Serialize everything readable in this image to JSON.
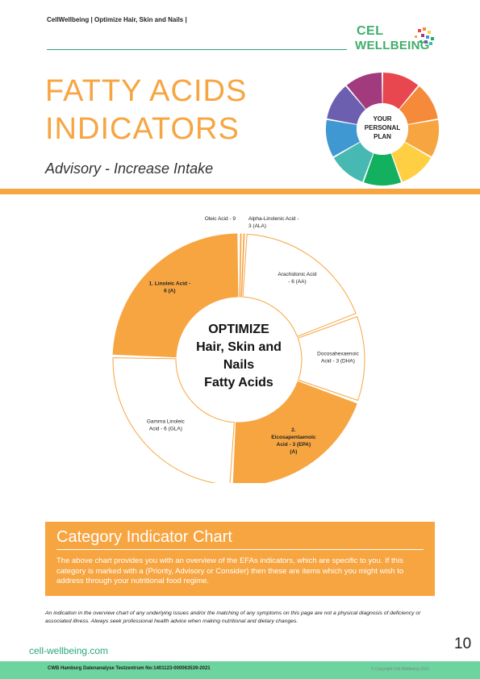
{
  "header": {
    "brand_line": "CellWellbeing | Optimize Hair, Skin and Nails |"
  },
  "logo": {
    "line1": "CEL",
    "line2": "WELLBEING"
  },
  "title": {
    "line1": "FATTY ACIDS",
    "line2": "INDICATORS"
  },
  "subtitle": "Advisory - Increase Intake",
  "wheel": {
    "center_lines": [
      "YOUR",
      "PERSONAL",
      "PLAN"
    ],
    "colors": [
      "#e8474f",
      "#f58a3a",
      "#f7a541",
      "#ffcf43",
      "#13b060",
      "#48b9b2",
      "#3f98d1",
      "#6c5fb0",
      "#a23a7e"
    ]
  },
  "chart_data": {
    "type": "pie",
    "center_label": [
      "OPTIMIZE",
      "Hair, Skin and",
      "Nails",
      "Fatty Acids"
    ],
    "segments": [
      {
        "label": [
          "Oleic Acid - 9"
        ],
        "value": 0.4,
        "highlighted": false
      },
      {
        "label": [
          "Alpha-Linolenic Acid -",
          "3 (ALA)"
        ],
        "value": 0.4,
        "highlighted": false
      },
      {
        "label": [
          "Arachidonic Acid",
          "- 6 (AA)"
        ],
        "value": 18,
        "highlighted": false
      },
      {
        "label": [
          "Docosahexaenoic",
          "Acid - 3 (DHA)"
        ],
        "value": 11,
        "highlighted": false
      },
      {
        "label": [
          "2.",
          "Eicosapentaenoic",
          "Acid - 3 (EPA)",
          "(A)"
        ],
        "value": 20,
        "highlighted": true
      },
      {
        "label": [
          "Gamma Linoleic",
          "Acid - 6 (GLA)"
        ],
        "value": 24,
        "highlighted": false
      },
      {
        "label": [
          "1. Linoleic Acid -",
          "6 (A)"
        ],
        "value": 24,
        "highlighted": true
      }
    ],
    "highlight_color": "#f7a541",
    "plain_color": "#ffffff"
  },
  "category": {
    "title": "Category Indicator Chart",
    "text": "The above chart provides you with an overview of the EFAs indicators, which are specific to you. If this category is marked with a (Priority, Advisory or Consider) then these are items which you might wish to address through your nutritional food regime."
  },
  "disclaimer": "An indication in the overview chart of any underlying issues and/or the matching of any symptoms on this page are not a physical diagnosis of deficiency or associated illness. Always seek professional health advice when making nutritional and dietary changes.",
  "footer": {
    "website": "cell-wellbeing.com",
    "page_number": "10",
    "lab_line": "CWB Hamburg Datenanalyse Testzentrum No:1401123-000063539-2021",
    "copyright": "© Copyright Cell Wellbeing 2021"
  }
}
